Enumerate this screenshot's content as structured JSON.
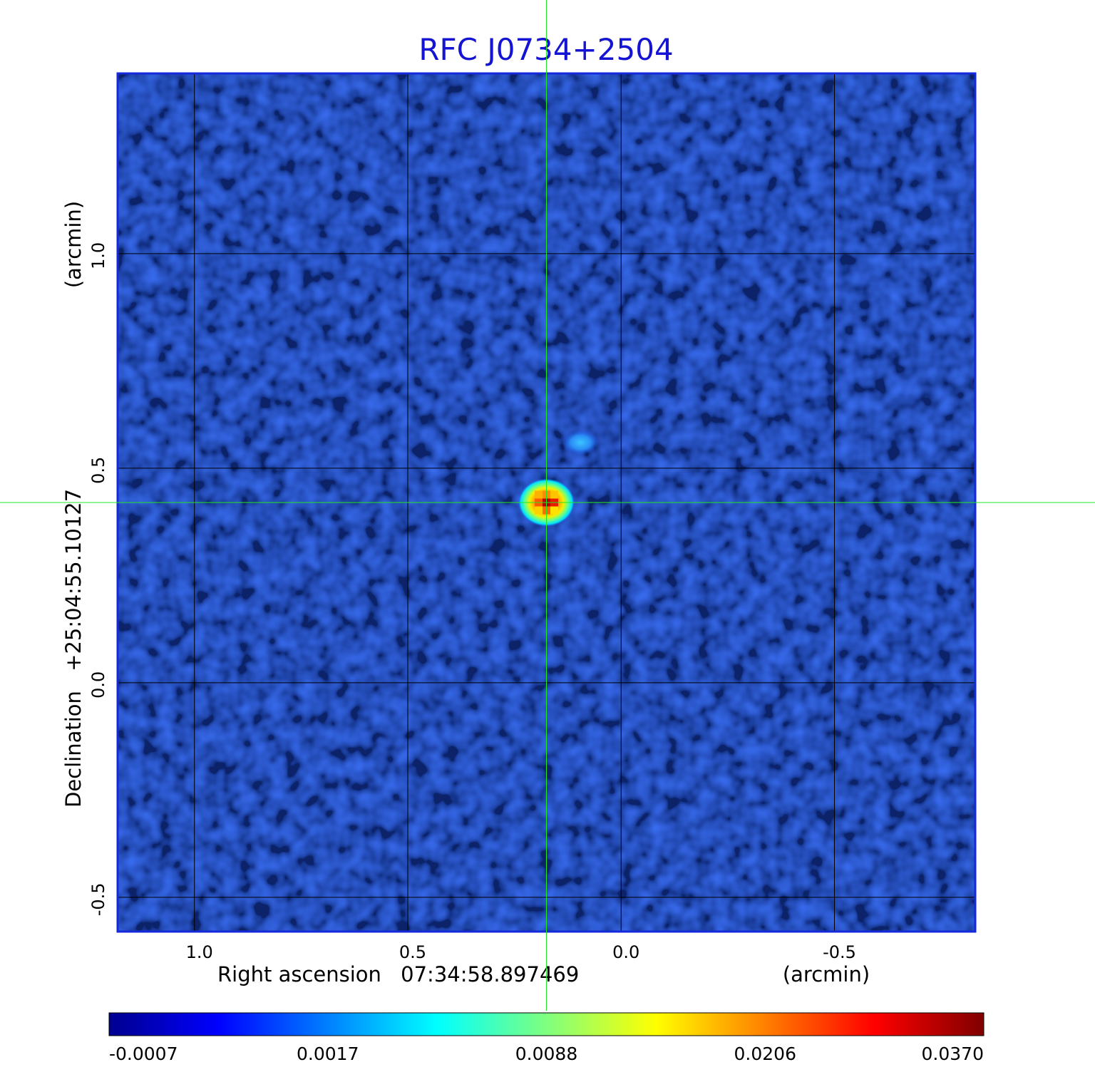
{
  "chart_data": {
    "type": "heatmap",
    "title": "RFC J0734+2504",
    "colormap": "jet",
    "colors": {
      "title": "#1414d2",
      "frame": "#1428dc",
      "grid": "#000000",
      "crosshair": "#22e822",
      "background_noise": "#1b50ea"
    },
    "x_axis": {
      "label": "Right ascension",
      "center": "07:34:58.897469",
      "unit": "(arcmin)",
      "range": [
        1.18,
        -0.83
      ],
      "ticks": [
        1.0,
        0.5,
        0.0,
        -0.5
      ],
      "tick_labels": [
        "1.0",
        "0.5",
        "0.0",
        "-0.5"
      ],
      "reversed": true
    },
    "y_axis": {
      "label": "Declination",
      "center": "+25:04:55.10127",
      "unit": "(arcmin)",
      "range": [
        -0.58,
        1.42
      ],
      "ticks": [
        1.0,
        0.5,
        0.0,
        -0.5
      ],
      "tick_labels": [
        "1.0",
        "0.5",
        "0.0",
        "-0.5"
      ]
    },
    "grid": true,
    "crosshair": {
      "x": 0.175,
      "y": 0.42
    },
    "source": {
      "x": 0.175,
      "y": 0.42,
      "peak": 0.037
    },
    "secondary_feature": {
      "x": 0.095,
      "y": 0.56,
      "level": 0.0017
    },
    "colorbar": {
      "position": "bottom",
      "tick_labels": [
        "-0.0007",
        "0.0017",
        "0.0088",
        "0.0206",
        "0.0370"
      ],
      "min": -0.0007,
      "max": 0.037
    }
  }
}
